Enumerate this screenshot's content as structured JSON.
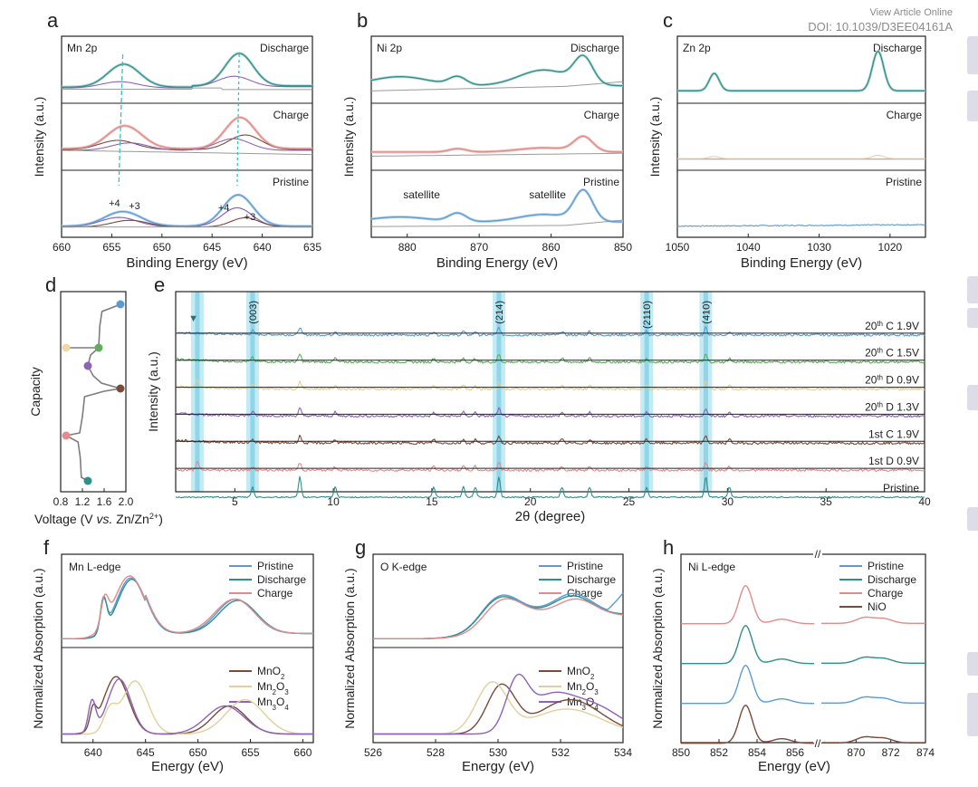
{
  "header": {
    "view_article": "View Article Online",
    "doi": "DOI: 10.1039/D3EE04161A"
  },
  "chart_data": [
    {
      "id": "a",
      "letter": "a",
      "type": "line",
      "title": "Mn 2p",
      "xlabel": "Binding Energy (eV)",
      "ylabel": "Intensity (a.u.)",
      "xlim": [
        660,
        635
      ],
      "xticks": [
        660,
        655,
        650,
        645,
        640,
        635
      ],
      "stack_labels": [
        "Discharge",
        "Charge",
        "Pristine"
      ],
      "annotations": [
        "+4",
        "+3",
        "+4",
        "+3"
      ],
      "peaks": [
        654,
        642.5
      ]
    },
    {
      "id": "b",
      "letter": "b",
      "type": "line",
      "title": "Ni 2p",
      "xlabel": "Binding Energy (eV)",
      "ylabel": "Intensity (a.u.)",
      "xlim": [
        885,
        850
      ],
      "xticks": [
        880,
        870,
        860,
        850
      ],
      "stack_labels": [
        "Discharge",
        "Charge",
        "Pristine"
      ],
      "annotations": [
        "satellite",
        "satellite"
      ],
      "peaks": [
        873,
        855.5
      ]
    },
    {
      "id": "c",
      "letter": "c",
      "type": "line",
      "title": "Zn 2p",
      "xlabel": "Binding Energy (eV)",
      "ylabel": "Intensity (a.u.)",
      "xlim": [
        1050,
        1015
      ],
      "xticks": [
        1050,
        1040,
        1030,
        1020
      ],
      "stack_labels": [
        "Discharge",
        "Charge",
        "Pristine"
      ],
      "peaks": [
        1044.8,
        1021.7
      ]
    },
    {
      "id": "d",
      "letter": "d",
      "type": "line",
      "xlabel": "Voltage (V vs. Zn/Zn²⁺)",
      "ylabel": "Capacity",
      "xlim": [
        0.8,
        2.0
      ],
      "xticks": [
        0.8,
        1.2,
        1.6,
        2.0
      ],
      "xtick_labels": [
        "0.8",
        "1.2",
        "1.6",
        "2.0"
      ],
      "xlabel_parts": [
        "Voltage (V ",
        "vs.",
        " Zn/Zn",
        "2+",
        ")"
      ],
      "points": [
        {
          "voltage": 1.3,
          "step": 0,
          "color": "#2f8f8a"
        },
        {
          "voltage": 0.9,
          "step": 1,
          "color": "#e08c8c"
        },
        {
          "voltage": 1.9,
          "step": 2,
          "color": "#7a4a3a"
        },
        {
          "voltage": 1.3,
          "step": 3,
          "color": "#8d63b8"
        },
        {
          "voltage": 1.5,
          "step": 4,
          "color": "#5eae5e"
        },
        {
          "voltage": 0.9,
          "step": 5,
          "color": "#f0d8a8"
        },
        {
          "voltage": 1.9,
          "step": 6,
          "color": "#5b9bd5"
        }
      ]
    },
    {
      "id": "e",
      "letter": "e",
      "type": "line",
      "xlabel": "2θ (degree)",
      "ylabel": "Intensity (a.u.)",
      "xlim": [
        2,
        40
      ],
      "xticks": [
        5,
        10,
        15,
        20,
        25,
        30,
        35,
        40
      ],
      "highlight_2theta": [
        3.1,
        5.9,
        18.4,
        25.9,
        28.9
      ],
      "reflections": [
        {
          "label": "(003)",
          "x": 5.9
        },
        {
          "label": "(214)",
          "x": 18.4
        },
        {
          "label": "(2110)",
          "x": 25.9
        },
        {
          "label": "(410)",
          "x": 28.9
        }
      ],
      "marker": "▼",
      "series": [
        {
          "name": "20th C 1.9V",
          "cycle": "20",
          "sup": "th",
          "rest": " C 1.9V",
          "color": "#5b9bd5"
        },
        {
          "name": "20th C 1.5V",
          "cycle": "20",
          "sup": "th",
          "rest": " C 1.5V",
          "color": "#5eae5e"
        },
        {
          "name": "20th D 0.9V",
          "cycle": "20",
          "sup": "th",
          "rest": " D 0.9V",
          "color": "#e3cf9c"
        },
        {
          "name": "20th D 1.3V",
          "cycle": "20",
          "sup": "th",
          "rest": " D 1.3V",
          "color": "#8d63b8"
        },
        {
          "name": "1st C 1.9V",
          "cycle": "",
          "sup": "",
          "rest": "1st C 1.9V",
          "color": "#7a4a3a"
        },
        {
          "name": "1st D 0.9V",
          "cycle": "",
          "sup": "",
          "rest": "1st D 0.9V",
          "color": "#e08c8c"
        },
        {
          "name": "Pristine",
          "cycle": "",
          "sup": "",
          "rest": "Pristine",
          "color": "#2f8f8a"
        }
      ]
    },
    {
      "id": "f",
      "letter": "f",
      "type": "line",
      "title": "Mn L-edge",
      "xlabel": "Energy (eV)",
      "ylabel": "Normalized Absorption (a.u.)",
      "xlim": [
        637,
        661
      ],
      "xticks": [
        640,
        645,
        650,
        655,
        660
      ],
      "top_series": [
        {
          "name": "Pristine",
          "color": "#5b9bd5"
        },
        {
          "name": "Discharge",
          "color": "#2f8f8a"
        },
        {
          "name": "Charge",
          "color": "#e08c8c"
        }
      ],
      "bottom_series": [
        {
          "name": "MnO2",
          "main": "MnO",
          "sub": "2",
          "color": "#7a4a3a"
        },
        {
          "name": "Mn2O3",
          "main": "Mn",
          "sub": "2",
          "mid": "O",
          "sub2": "3",
          "color": "#e3cf9c"
        },
        {
          "name": "Mn3O4",
          "main": "Mn",
          "sub": "3",
          "mid": "O",
          "sub2": "4",
          "color": "#8d63b8"
        }
      ]
    },
    {
      "id": "g",
      "letter": "g",
      "type": "line",
      "title": "O K-edge",
      "xlabel": "Energy (eV)",
      "ylabel": "Normalized Absorption (a.u.)",
      "xlim": [
        526,
        534
      ],
      "xticks": [
        526,
        528,
        530,
        532,
        534
      ],
      "top_series": [
        {
          "name": "Pristine",
          "color": "#5b9bd5"
        },
        {
          "name": "Discharge",
          "color": "#2f8f8a"
        },
        {
          "name": "Charge",
          "color": "#e08c8c"
        }
      ],
      "bottom_series": [
        {
          "name": "MnO2",
          "main": "MnO",
          "sub": "2",
          "color": "#7a4a3a"
        },
        {
          "name": "Mn2O3",
          "main": "Mn",
          "sub": "2",
          "mid": "O",
          "sub2": "3",
          "color": "#e3cf9c"
        },
        {
          "name": "Mn3O4",
          "main": "Mn",
          "sub": "3",
          "mid": "O",
          "sub2": "4",
          "color": "#8d63b8"
        }
      ]
    },
    {
      "id": "h",
      "letter": "h",
      "type": "line",
      "title": "Ni L-edge",
      "xlabel": "Energy (eV)",
      "ylabel": "Normalized Absorption (a.u.)",
      "xticks": [
        850,
        852,
        854,
        856,
        870,
        872,
        874
      ],
      "axis_break": "//",
      "series": [
        {
          "name": "Pristine",
          "color": "#5b9bd5"
        },
        {
          "name": "Discharge",
          "color": "#2f8f8a"
        },
        {
          "name": "Charge",
          "color": "#e08c8c"
        },
        {
          "name": "NiO",
          "color": "#7a4a3a"
        }
      ]
    }
  ]
}
